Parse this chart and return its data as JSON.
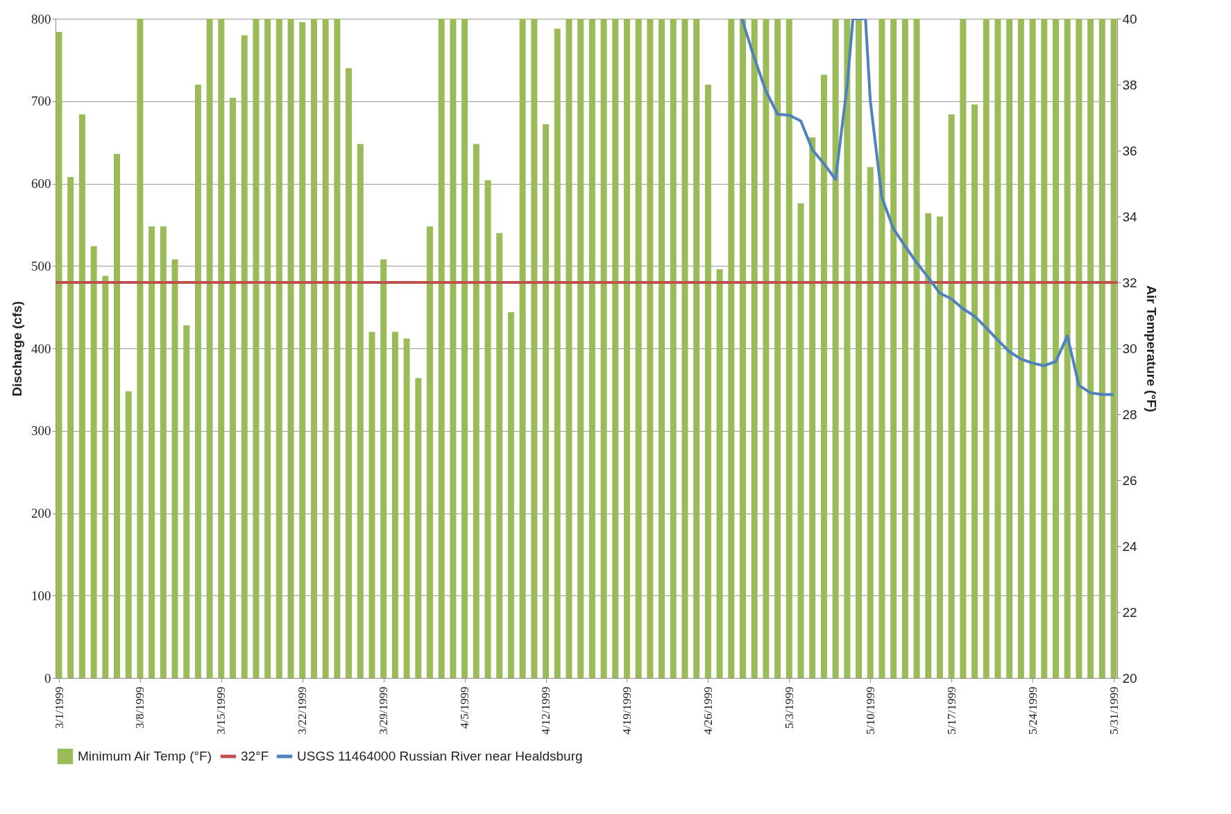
{
  "chart_data": {
    "type": "bar",
    "ylabel": "Discharge (cfs)",
    "y2label": "Air Temperature (°F)",
    "x": [
      "1999-03-01",
      "1999-03-02",
      "1999-03-03",
      "1999-03-04",
      "1999-03-05",
      "1999-03-06",
      "1999-03-07",
      "1999-03-08",
      "1999-03-09",
      "1999-03-10",
      "1999-03-11",
      "1999-03-12",
      "1999-03-13",
      "1999-03-14",
      "1999-03-15",
      "1999-03-16",
      "1999-03-17",
      "1999-03-18",
      "1999-03-19",
      "1999-03-20",
      "1999-03-21",
      "1999-03-22",
      "1999-03-23",
      "1999-03-24",
      "1999-03-25",
      "1999-03-26",
      "1999-03-27",
      "1999-03-28",
      "1999-03-29",
      "1999-03-30",
      "1999-03-31",
      "1999-04-01",
      "1999-04-02",
      "1999-04-03",
      "1999-04-04",
      "1999-04-05",
      "1999-04-06",
      "1999-04-07",
      "1999-04-08",
      "1999-04-09",
      "1999-04-10",
      "1999-04-11",
      "1999-04-12",
      "1999-04-13",
      "1999-04-14",
      "1999-04-15",
      "1999-04-16",
      "1999-04-17",
      "1999-04-18",
      "1999-04-19",
      "1999-04-20",
      "1999-04-21",
      "1999-04-22",
      "1999-04-23",
      "1999-04-24",
      "1999-04-25",
      "1999-04-26",
      "1999-04-27",
      "1999-04-28",
      "1999-04-29",
      "1999-04-30",
      "1999-05-01",
      "1999-05-02",
      "1999-05-03",
      "1999-05-04",
      "1999-05-05",
      "1999-05-06",
      "1999-05-07",
      "1999-05-08",
      "1999-05-09",
      "1999-05-10",
      "1999-05-11",
      "1999-05-12",
      "1999-05-13",
      "1999-05-14",
      "1999-05-15",
      "1999-05-16",
      "1999-05-17",
      "1999-05-18",
      "1999-05-19",
      "1999-05-20",
      "1999-05-21",
      "1999-05-22",
      "1999-05-23",
      "1999-05-24",
      "1999-05-25",
      "1999-05-26",
      "1999-05-27",
      "1999-05-28",
      "1999-05-29",
      "1999-05-30",
      "1999-05-31"
    ],
    "series": [
      {
        "name": "Minimum Air Temp (°F)",
        "axis": "y2",
        "color": "#9bbb59",
        "values": [
          39.6,
          35.2,
          37.1,
          33.1,
          32.2,
          35.9,
          28.7,
          40,
          33.7,
          33.7,
          32.7,
          30.7,
          38,
          40,
          40,
          37.6,
          39.5,
          40,
          40,
          40,
          40,
          39.9,
          40,
          40,
          40,
          38.5,
          36.2,
          30.5,
          32.7,
          30.5,
          30.3,
          29.1,
          33.7,
          40,
          40,
          40,
          36.2,
          35.1,
          33.5,
          31.1,
          40,
          40,
          36.8,
          39.7,
          40,
          40,
          40,
          40,
          40,
          40,
          40,
          40,
          40,
          40,
          40,
          40,
          38,
          32.4,
          40,
          40,
          40,
          40,
          40,
          40,
          34.4,
          36.4,
          38.3,
          40,
          40,
          40,
          35.5,
          40,
          40,
          40,
          40,
          34.1,
          34,
          37.1,
          40,
          37.4,
          40,
          40,
          40,
          40,
          40,
          40,
          40,
          40,
          40,
          40,
          40,
          40
        ]
      },
      {
        "name": "USGS 11464000 Russian River near Healdsburg",
        "type": "line",
        "color": "#4f81bd",
        "x": [
          "1999-04-28T22:00",
          "1999-04-30",
          "1999-05-01",
          "1999-05-02",
          "1999-05-03",
          "1999-05-04",
          "1999-05-05",
          "1999-05-06",
          "1999-05-07",
          "1999-05-08",
          "1999-05-08T12:00",
          "1999-05-09T14:00",
          "1999-05-10",
          "1999-05-11",
          "1999-05-12",
          "1999-05-13",
          "1999-05-14",
          "1999-05-15",
          "1999-05-16",
          "1999-05-17",
          "1999-05-18",
          "1999-05-19",
          "1999-05-20",
          "1999-05-21",
          "1999-05-22",
          "1999-05-23",
          "1999-05-24",
          "1999-05-25",
          "1999-05-26",
          "1999-05-27",
          "1999-05-28",
          "1999-05-29",
          "1999-05-30",
          "1999-05-31"
        ],
        "values": [
          800,
          752,
          712,
          684,
          683,
          676,
          641,
          624,
          605,
          719,
          800,
          800,
          700,
          583,
          545,
          524,
          504,
          486,
          467,
          460,
          448,
          439,
          425,
          410,
          396,
          387,
          382,
          379,
          384,
          415,
          355,
          346,
          344,
          344
        ]
      }
    ],
    "ref_lines": [
      {
        "axis": "y2",
        "value": 32,
        "label": "32°F",
        "color": "#c0504d"
      }
    ],
    "xlim": [
      "1999-03-01",
      "1999-05-31"
    ],
    "xticks": [
      {
        "value": "1999-03-01",
        "label": "3/1/1999"
      },
      {
        "value": "1999-03-08",
        "label": "3/8/1999"
      },
      {
        "value": "1999-03-15",
        "label": "3/15/1999"
      },
      {
        "value": "1999-03-22",
        "label": "3/22/1999"
      },
      {
        "value": "1999-03-29",
        "label": "3/29/1999"
      },
      {
        "value": "1999-04-05",
        "label": "4/5/1999"
      },
      {
        "value": "1999-04-12",
        "label": "4/12/1999"
      },
      {
        "value": "1999-04-19",
        "label": "4/19/1999"
      },
      {
        "value": "1999-04-26",
        "label": "4/26/1999"
      },
      {
        "value": "1999-05-03",
        "label": "5/3/1999"
      },
      {
        "value": "1999-05-10",
        "label": "5/10/1999"
      },
      {
        "value": "1999-05-17",
        "label": "5/17/1999"
      },
      {
        "value": "1999-05-24",
        "label": "5/24/1999"
      },
      {
        "value": "1999-05-31",
        "label": "5/31/1999"
      }
    ],
    "ylim": [
      0,
      800
    ],
    "yticks": [
      0,
      100,
      200,
      300,
      400,
      500,
      600,
      700,
      800
    ],
    "y2lim": [
      20,
      40
    ],
    "y2ticks": [
      20,
      22,
      24,
      26,
      28,
      30,
      32,
      34,
      36,
      38,
      40
    ],
    "grid": "y",
    "legend": "bottom"
  }
}
